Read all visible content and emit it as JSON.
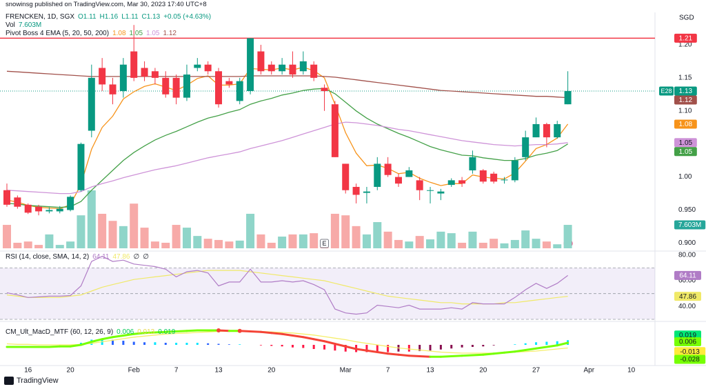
{
  "header": {
    "publisher": "snowinsg published on TradingView.com, Mar 30, 2023 17:40 UTC+8",
    "currency": "SGD",
    "symbol": "FRENCKEN, 1D, SGX",
    "ohlc": [
      "O1.11",
      "H1.16",
      "L1.11",
      "C1.13"
    ],
    "change": "+0.05 (+4.63%)",
    "logo": "TradingView"
  },
  "chart_data": [
    {
      "type": "candlestick",
      "last_symbol": "E28",
      "xlim": [
        0,
        61
      ],
      "xticks": [
        {
          "value": 2,
          "label": "16"
        },
        {
          "value": 6,
          "label": "20"
        },
        {
          "value": 12,
          "label": "Feb"
        },
        {
          "value": 16,
          "label": "7"
        },
        {
          "value": 20,
          "label": "13"
        },
        {
          "value": 25,
          "label": "20"
        },
        {
          "value": 32,
          "label": "Mar"
        },
        {
          "value": 36,
          "label": "7"
        },
        {
          "value": 40,
          "label": "13"
        },
        {
          "value": 45,
          "label": "20"
        },
        {
          "value": 50,
          "label": "27"
        },
        {
          "value": 55,
          "label": "Apr"
        },
        {
          "value": 59,
          "label": "10"
        }
      ],
      "ylim": [
        0.89,
        1.249
      ],
      "yticks": [
        {
          "value": 1.2,
          "label": "1.20"
        },
        {
          "value": 1.15,
          "label": "1.15"
        },
        {
          "value": 1.1,
          "label": "1.10"
        },
        {
          "value": 1.0,
          "label": "1.00"
        },
        {
          "value": 0.95,
          "label": "0.950"
        },
        {
          "value": 0.9,
          "label": "0.900"
        }
      ],
      "up_color": "#089981",
      "down_color": "#f23645",
      "open": [
        0.98,
        0.969,
        0.958,
        0.955,
        0.948,
        0.948,
        0.95,
        0.98,
        1.07,
        1.165,
        1.14,
        1.13,
        1.19,
        1.165,
        1.16,
        1.15,
        1.15,
        1.12,
        1.165,
        1.17,
        1.16,
        1.145,
        1.115,
        1.13,
        1.19,
        1.17,
        1.16,
        1.17,
        1.16,
        1.17,
        1.135,
        1.11,
        1.02,
        0.985,
        0.976,
        0.985,
        1.02,
        1.0,
        1.0,
        0.995,
        0.98,
        0.975,
        0.988,
        0.995,
        1.01,
        1.01,
        1.005,
        0.995,
        0.995,
        1.03,
        1.06,
        1.08,
        1.06,
        1.11
      ],
      "high": [
        0.99,
        0.972,
        0.96,
        0.958,
        0.954,
        0.956,
        0.972,
        1.052,
        1.17,
        1.18,
        1.15,
        1.18,
        1.23,
        1.175,
        1.165,
        1.16,
        1.155,
        1.17,
        1.18,
        1.175,
        1.165,
        1.15,
        1.15,
        1.21,
        1.2,
        1.175,
        1.18,
        1.19,
        1.19,
        1.175,
        1.14,
        1.115,
        1.02,
        0.99,
        0.985,
        1.03,
        1.03,
        1.005,
        1.015,
        1.0,
        0.985,
        0.982,
        0.998,
        1.0,
        1.04,
        1.012,
        1.008,
        1.0,
        1.03,
        1.07,
        1.09,
        1.082,
        1.085,
        1.16
      ],
      "low": [
        0.955,
        0.952,
        0.944,
        0.942,
        0.945,
        0.945,
        0.948,
        0.978,
        1.06,
        1.13,
        1.11,
        1.12,
        1.145,
        1.145,
        1.14,
        1.12,
        1.11,
        1.115,
        1.16,
        1.155,
        1.105,
        1.135,
        1.11,
        1.125,
        1.155,
        1.155,
        1.155,
        1.15,
        1.155,
        1.145,
        1.1,
        1.03,
        0.975,
        0.96,
        0.96,
        0.98,
        1.0,
        0.985,
        1.0,
        0.965,
        0.96,
        0.965,
        0.985,
        0.985,
        1.005,
        0.99,
        0.99,
        0.99,
        0.992,
        1.025,
        1.06,
        1.045,
        1.058,
        1.11
      ],
      "close": [
        0.958,
        0.955,
        0.946,
        0.948,
        0.95,
        0.952,
        0.97,
        1.05,
        1.15,
        1.14,
        1.125,
        1.17,
        1.15,
        1.152,
        1.15,
        1.125,
        1.12,
        1.155,
        1.17,
        1.16,
        1.11,
        1.14,
        1.145,
        1.21,
        1.16,
        1.16,
        1.17,
        1.155,
        1.175,
        1.15,
        1.13,
        1.03,
        0.98,
        0.973,
        0.978,
        1.02,
        1.003,
        0.99,
        1.01,
        0.98,
        0.98,
        0.978,
        0.995,
        0.99,
        1.03,
        0.993,
        0.993,
        0.996,
        1.025,
        1.06,
        1.08,
        1.06,
        1.08,
        1.13
      ],
      "close_label": "1.13",
      "hline": {
        "value": 1.21,
        "label": "1.21",
        "color": "#f23645"
      },
      "events": [
        {
          "index": 30,
          "label": "E"
        }
      ],
      "volume": {
        "name": "Vol",
        "label": "7.603M",
        "up_color": "#8fd5c9",
        "down_color": "#f7aaa8",
        "values": [
          7.6,
          1.8,
          2.2,
          1.1,
          4.5,
          1.1,
          2.2,
          10.7,
          18.8,
          11.2,
          8.9,
          7.2,
          14.5,
          6.7,
          2.2,
          1.8,
          7.6,
          6.7,
          4.0,
          3.1,
          2.7,
          2.2,
          2.5,
          11.2,
          4.5,
          1.8,
          3.8,
          4.5,
          4.5,
          4.9,
          1.0,
          11.2,
          10.7,
          7.2,
          4.5,
          8.5,
          5.4,
          2.7,
          2.2,
          4.0,
          2.9,
          5.4,
          4.9,
          1.8,
          5.4,
          1.8,
          3.1,
          1.6,
          2.7,
          5.8,
          3.1,
          2.2,
          1.3,
          7.603
        ]
      },
      "ema_title": "Pivot Boss 4 EMA (5, 20, 50, 200)",
      "series": [
        {
          "color": "#f7931a",
          "last_label": "1.08",
          "label_text_color": "#ffffff",
          "values": [
            0.965,
            0.962,
            0.957,
            0.954,
            0.953,
            0.952,
            0.958,
            0.989,
            1.042,
            1.075,
            1.092,
            1.118,
            1.129,
            1.137,
            1.141,
            1.136,
            1.131,
            1.139,
            1.149,
            1.153,
            1.139,
            1.139,
            1.141,
            1.164,
            1.163,
            1.162,
            1.165,
            1.162,
            1.166,
            1.161,
            1.15,
            1.11,
            1.067,
            1.036,
            1.017,
            1.018,
            1.013,
            1.005,
            1.007,
            0.998,
            0.992,
            0.987,
            0.99,
            0.99,
            1.003,
            1.0,
            0.998,
            0.997,
            1.006,
            1.024,
            1.043,
            1.049,
            1.059,
            1.08
          ]
        },
        {
          "color": "#43a047",
          "last_label": "1.05",
          "label_text_color": "#ffffff",
          "values": [
            0.96,
            0.959,
            0.957,
            0.956,
            0.955,
            0.954,
            0.955,
            0.963,
            0.98,
            0.995,
            1.01,
            1.025,
            1.037,
            1.047,
            1.056,
            1.063,
            1.069,
            1.076,
            1.083,
            1.089,
            1.093,
            1.098,
            1.102,
            1.11,
            1.115,
            1.119,
            1.124,
            1.127,
            1.131,
            1.133,
            1.134,
            1.126,
            1.113,
            1.1,
            1.089,
            1.08,
            1.073,
            1.066,
            1.06,
            1.053,
            1.046,
            1.041,
            1.037,
            1.033,
            1.032,
            1.029,
            1.027,
            1.025,
            1.025,
            1.028,
            1.033,
            1.036,
            1.04,
            1.05
          ]
        },
        {
          "color": "#ce93d8",
          "last_label": "1.05",
          "label_text_color": "#131722",
          "values": [
            0.98,
            0.979,
            0.978,
            0.977,
            0.976,
            0.975,
            0.975,
            0.978,
            0.985,
            0.99,
            0.994,
            0.999,
            1.003,
            1.007,
            1.011,
            1.014,
            1.017,
            1.021,
            1.025,
            1.029,
            1.032,
            1.035,
            1.038,
            1.043,
            1.047,
            1.051,
            1.055,
            1.06,
            1.065,
            1.07,
            1.075,
            1.08,
            1.083,
            1.082,
            1.08,
            1.078,
            1.075,
            1.072,
            1.07,
            1.067,
            1.064,
            1.061,
            1.058,
            1.055,
            1.053,
            1.051,
            1.049,
            1.048,
            1.047,
            1.048,
            1.049,
            1.049,
            1.05,
            1.052
          ]
        },
        {
          "color": "#a1504a",
          "last_label": "1.12",
          "label_text_color": "#ffffff",
          "values": [
            1.16,
            1.159,
            1.158,
            1.157,
            1.156,
            1.155,
            1.154,
            1.153,
            1.152,
            1.152,
            1.152,
            1.152,
            1.152,
            1.152,
            1.152,
            1.152,
            1.152,
            1.152,
            1.152,
            1.152,
            1.152,
            1.152,
            1.152,
            1.153,
            1.153,
            1.153,
            1.153,
            1.153,
            1.153,
            1.153,
            1.152,
            1.151,
            1.149,
            1.147,
            1.145,
            1.143,
            1.141,
            1.139,
            1.137,
            1.135,
            1.133,
            1.131,
            1.13,
            1.129,
            1.128,
            1.127,
            1.126,
            1.125,
            1.124,
            1.123,
            1.122,
            1.122,
            1.121,
            1.12
          ]
        }
      ]
    },
    {
      "type": "line",
      "title": "RSI (14, close, SMA, 14, 2)",
      "header_extra": [
        "∅",
        "∅"
      ],
      "ylim": [
        30,
        82
      ],
      "yticks": [
        {
          "value": 80,
          "label": "80.00"
        },
        {
          "value": 60,
          "label": "60.00"
        },
        {
          "value": 40,
          "label": "40.00"
        }
      ],
      "levels": [
        70,
        50,
        30
      ],
      "band_color": "#7e57c2",
      "series": [
        {
          "color": "#b07cc6",
          "last_label": "64.11",
          "label_text_color": "#ffffff",
          "values": [
            50.7,
            49,
            47,
            47.5,
            48,
            48,
            48.5,
            56,
            75,
            79,
            75,
            76,
            73,
            72,
            71,
            69,
            63,
            67,
            68,
            66,
            56,
            59,
            59,
            69,
            59,
            59,
            60,
            59,
            60,
            57,
            53,
            38,
            35,
            34,
            35,
            41,
            40,
            39,
            41,
            38,
            38,
            38,
            39,
            38,
            43,
            42,
            42,
            42,
            47,
            53,
            58,
            54,
            58,
            64.11
          ]
        },
        {
          "color": "#f0e968",
          "last_label": "47.86",
          "label_text_color": "#131722",
          "values": [
            49,
            48,
            47,
            47,
            47,
            47,
            48,
            49,
            52,
            55,
            57,
            59,
            61,
            62,
            63,
            64,
            65,
            66,
            67,
            68,
            68,
            68,
            68,
            67,
            66,
            65,
            64,
            63,
            62,
            61,
            60,
            58,
            56,
            54,
            52,
            50,
            48,
            47,
            46,
            45,
            44,
            43,
            43,
            42,
            42,
            42,
            42,
            43,
            43,
            44,
            45,
            46,
            47,
            47.86
          ]
        }
      ]
    },
    {
      "type": "macd",
      "title": "CM_Ult_MacD_MTF (60, 12, 26, 9)",
      "header_values": [
        "0.006",
        "0.013",
        "0.019"
      ],
      "header_colors": [
        "#00c853",
        "#e6d84a",
        "#00c853"
      ],
      "ylim": [
        -0.04,
        0.04
      ],
      "up_color": "#76ff03",
      "down_color": "#f44336",
      "signal_color": "#f5ee6a",
      "hist_colors": [
        "#00e5ff",
        "#2962ff",
        "#ff1744",
        "#880e4f"
      ],
      "macd": [
        -0.004,
        -0.004,
        -0.004,
        -0.004,
        -0.004,
        -0.003,
        -0.003,
        0,
        0.006,
        0.011,
        0.015,
        0.018,
        0.021,
        0.023,
        0.024,
        0.025,
        0.026,
        0.027,
        0.028,
        0.028,
        0.028,
        0.027,
        0.027,
        0.026,
        0.025,
        0.023,
        0.021,
        0.018,
        0.015,
        0.011,
        0.007,
        0.002,
        -0.003,
        -0.008,
        -0.011,
        -0.014,
        -0.017,
        -0.019,
        -0.021,
        -0.022,
        -0.023,
        -0.023,
        -0.022,
        -0.021,
        -0.02,
        -0.019,
        -0.017,
        -0.015,
        -0.013,
        -0.01,
        -0.007,
        -0.004,
        -0.001,
        0.004
      ],
      "signal": [
        0.002,
        0.001,
        0.001,
        0,
        0,
        0,
        0,
        0.001,
        0.003,
        0.006,
        0.009,
        0.012,
        0.015,
        0.017,
        0.019,
        0.021,
        0.022,
        0.023,
        0.024,
        0.025,
        0.026,
        0.026,
        0.026,
        0.026,
        0.026,
        0.025,
        0.024,
        0.023,
        0.021,
        0.019,
        0.016,
        0.013,
        0.01,
        0.006,
        0.003,
        0,
        -0.003,
        -0.006,
        -0.008,
        -0.01,
        -0.012,
        -0.014,
        -0.015,
        -0.016,
        -0.016,
        -0.016,
        -0.016,
        -0.015,
        -0.014,
        -0.013,
        -0.012,
        -0.01,
        -0.008,
        -0.006
      ],
      "histogram": [
        0,
        0,
        0,
        0,
        0,
        0,
        0,
        0.004,
        0.01,
        0.012,
        0.01,
        0.008,
        0.006,
        0.005,
        0.005,
        0.004,
        0.004,
        0.004,
        0.004,
        0.003,
        0.002,
        0.001,
        0.001,
        0,
        -0.001,
        -0.002,
        -0.003,
        -0.005,
        -0.006,
        -0.008,
        -0.009,
        -0.011,
        -0.013,
        -0.014,
        -0.014,
        -0.014,
        -0.014,
        -0.013,
        -0.013,
        -0.012,
        -0.011,
        -0.009,
        -0.007,
        -0.005,
        -0.004,
        -0.003,
        -0.001,
        0,
        0.001,
        0.003,
        0.005,
        0.006,
        0.007,
        0.009
      ],
      "axis_labels": [
        {
          "value": 0.019,
          "label": "0.019"
        },
        {
          "value": 0.006,
          "label": "0.006"
        },
        {
          "value": -0.013,
          "label": "-0.013"
        },
        {
          "value": -0.028,
          "label": "-0.028"
        }
      ],
      "axis_label_colors": [
        "#00e676",
        "#76ff03",
        "#ffeb3b",
        "#76ff03"
      ]
    }
  ]
}
